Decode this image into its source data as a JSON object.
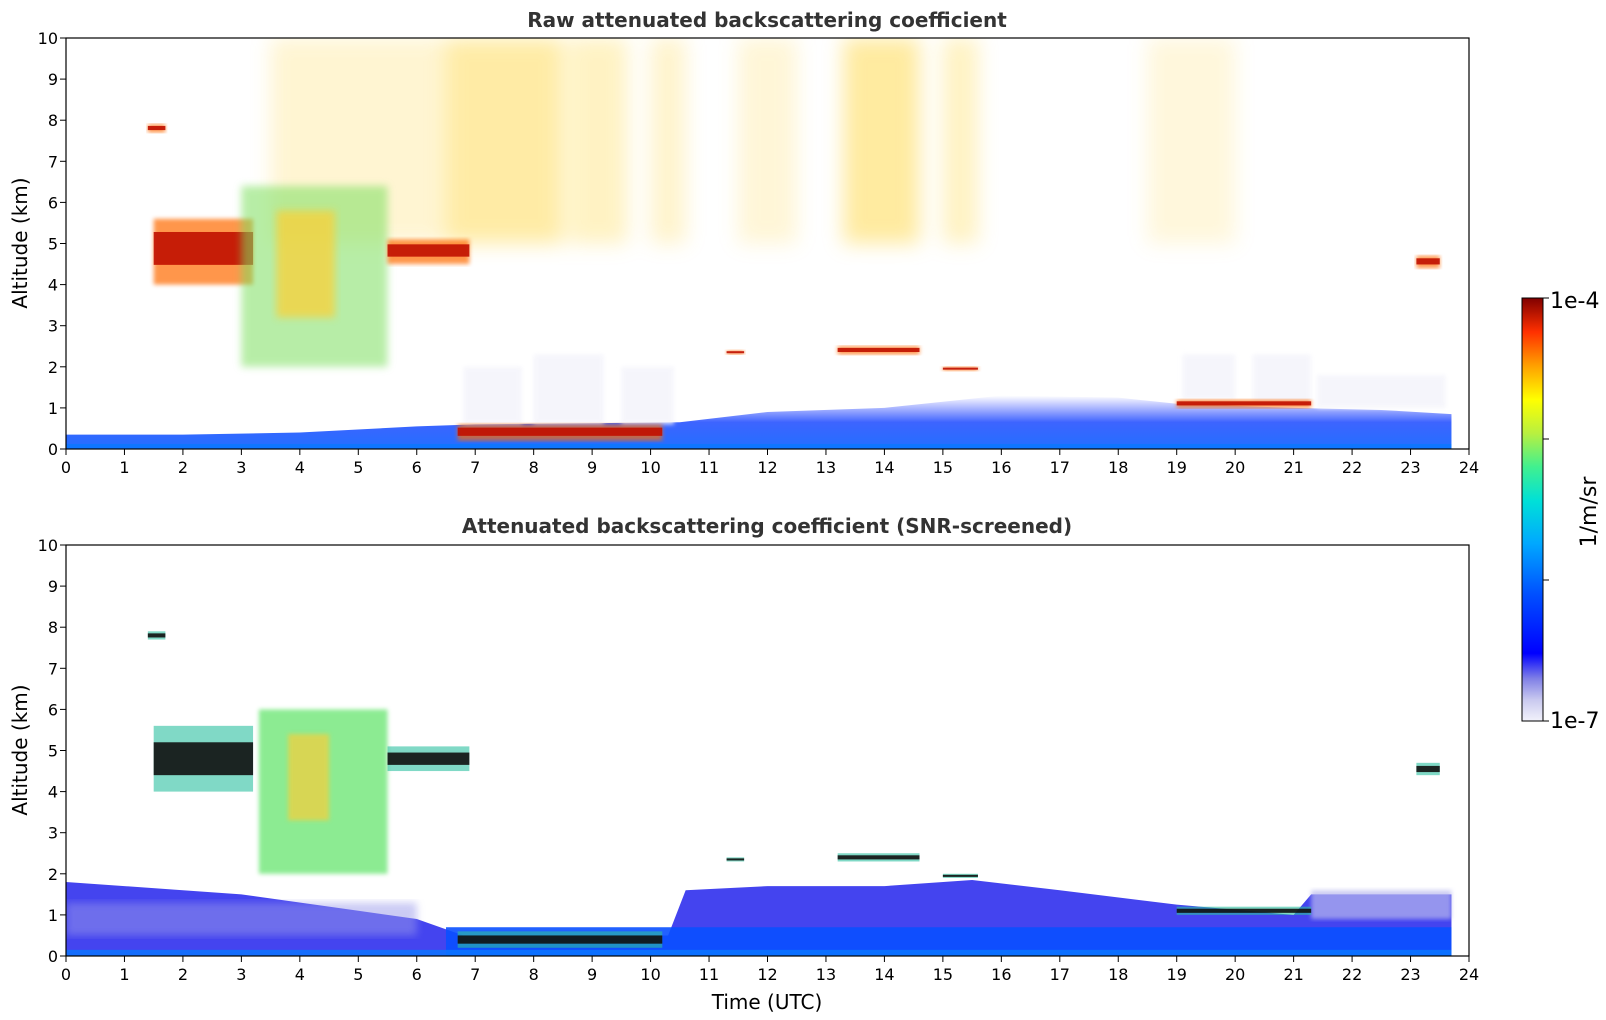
{
  "chart_data": [
    {
      "type": "heatmap",
      "title": "Raw attenuated backscattering coefficient",
      "xlabel": "",
      "ylabel": "Altitude (km)",
      "xlim": [
        0,
        24
      ],
      "ylim": [
        0,
        10
      ],
      "xticks": [
        "0",
        "1",
        "2",
        "3",
        "4",
        "5",
        "6",
        "7",
        "8",
        "9",
        "10",
        "11",
        "12",
        "13",
        "14",
        "15",
        "16",
        "17",
        "18",
        "19",
        "20",
        "21",
        "22",
        "23",
        "24"
      ],
      "yticks": [
        "0",
        "1",
        "2",
        "3",
        "4",
        "5",
        "6",
        "7",
        "8",
        "9",
        "10"
      ],
      "data_extent_x": [
        0,
        23.7
      ],
      "features": [
        {
          "t": [
            1.4,
            1.7
          ],
          "alt": [
            7.7,
            7.9
          ],
          "level": "high"
        },
        {
          "t": [
            1.5,
            3.2
          ],
          "alt": [
            4.0,
            5.6
          ],
          "level": "high"
        },
        {
          "t": [
            3.0,
            5.5
          ],
          "alt": [
            2.0,
            6.4
          ],
          "level": "medium"
        },
        {
          "t": [
            5.5,
            6.9
          ],
          "alt": [
            4.5,
            5.1
          ],
          "level": "high"
        },
        {
          "t": [
            6.7,
            10.2
          ],
          "alt": [
            0.2,
            0.6
          ],
          "level": "high"
        },
        {
          "t": [
            11.3,
            11.6
          ],
          "alt": [
            2.3,
            2.4
          ],
          "level": "high"
        },
        {
          "t": [
            13.2,
            14.6
          ],
          "alt": [
            2.3,
            2.5
          ],
          "level": "high"
        },
        {
          "t": [
            15.0,
            15.6
          ],
          "alt": [
            1.9,
            2.0
          ],
          "level": "high"
        },
        {
          "t": [
            19.0,
            21.3
          ],
          "alt": [
            1.0,
            1.2
          ],
          "level": "high"
        },
        {
          "t": [
            23.1,
            23.5
          ],
          "alt": [
            4.4,
            4.7
          ],
          "level": "high"
        }
      ]
    },
    {
      "type": "heatmap",
      "title": "Attenuated backscattering coefficient (SNR-screened)",
      "xlabel": "Time (UTC)",
      "ylabel": "Altitude (km)",
      "xlim": [
        0,
        24
      ],
      "ylim": [
        0,
        10
      ],
      "xticks": [
        "0",
        "1",
        "2",
        "3",
        "4",
        "5",
        "6",
        "7",
        "8",
        "9",
        "10",
        "11",
        "12",
        "13",
        "14",
        "15",
        "16",
        "17",
        "18",
        "19",
        "20",
        "21",
        "22",
        "23",
        "24"
      ],
      "yticks": [
        "0",
        "1",
        "2",
        "3",
        "4",
        "5",
        "6",
        "7",
        "8",
        "9",
        "10"
      ],
      "data_extent_x": [
        0,
        23.7
      ]
    }
  ],
  "colorbar": {
    "label": "1/m/sr",
    "max_label": "1e-4",
    "min_label": "1e-7",
    "scale": "log",
    "colormap": "jet",
    "low_colors": [
      "#f2f2fb",
      "#d4d4f2",
      "#a9a9ea",
      "#7777e3"
    ]
  }
}
